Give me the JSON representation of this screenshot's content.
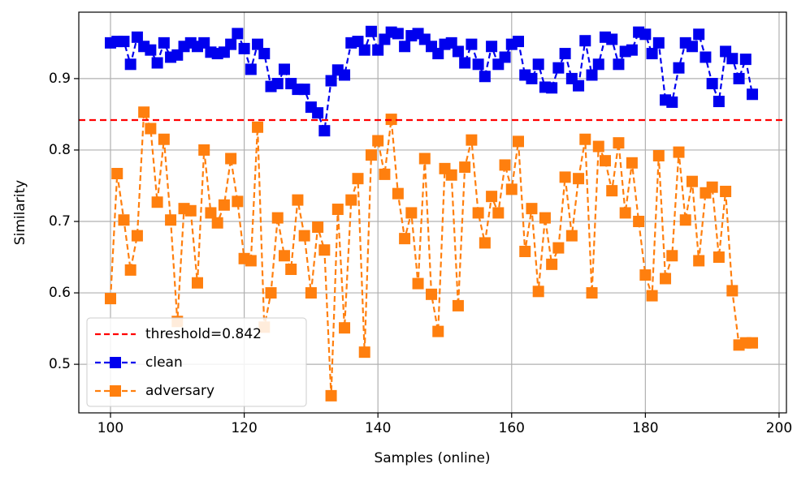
{
  "chart_data": {
    "type": "line",
    "xlabel": "Samples (online)",
    "ylabel": "Similarity",
    "x": [
      100,
      101,
      102,
      103,
      104,
      105,
      106,
      107,
      108,
      109,
      110,
      111,
      112,
      113,
      114,
      115,
      116,
      117,
      118,
      119,
      120,
      121,
      122,
      123,
      124,
      125,
      126,
      127,
      128,
      129,
      130,
      131,
      132,
      133,
      134,
      135,
      136,
      137,
      138,
      139,
      140,
      141,
      142,
      143,
      144,
      145,
      146,
      147,
      148,
      149,
      150,
      151,
      152,
      153,
      154,
      155,
      156,
      157,
      158,
      159,
      160,
      161,
      162,
      163,
      164,
      165,
      166,
      167,
      168,
      169,
      170,
      171,
      172,
      173,
      174,
      175,
      176,
      177,
      178,
      179,
      180,
      181,
      182,
      183,
      184,
      185,
      186,
      187,
      188,
      189,
      190,
      191,
      192,
      193,
      194,
      195,
      196
    ],
    "threshold": {
      "name": "threshold=0.842",
      "value": 0.842,
      "color": "#ff0000"
    },
    "series": [
      {
        "name": "clean",
        "color": "#0000ee",
        "values": [
          0.95,
          0.952,
          0.952,
          0.92,
          0.958,
          0.945,
          0.94,
          0.922,
          0.95,
          0.93,
          0.933,
          0.945,
          0.95,
          0.945,
          0.95,
          0.937,
          0.935,
          0.937,
          0.948,
          0.963,
          0.942,
          0.913,
          0.948,
          0.935,
          0.889,
          0.893,
          0.913,
          0.893,
          0.885,
          0.885,
          0.86,
          0.852,
          0.827,
          0.897,
          0.912,
          0.905,
          0.95,
          0.952,
          0.94,
          0.966,
          0.94,
          0.955,
          0.965,
          0.963,
          0.945,
          0.96,
          0.963,
          0.955,
          0.945,
          0.935,
          0.948,
          0.95,
          0.938,
          0.922,
          0.948,
          0.92,
          0.903,
          0.945,
          0.92,
          0.93,
          0.948,
          0.952,
          0.905,
          0.9,
          0.92,
          0.888,
          0.887,
          0.915,
          0.935,
          0.9,
          0.89,
          0.953,
          0.905,
          0.92,
          0.958,
          0.955,
          0.92,
          0.938,
          0.94,
          0.965,
          0.962,
          0.935,
          0.95,
          0.87,
          0.867,
          0.915,
          0.95,
          0.945,
          0.962,
          0.93,
          0.893,
          0.868,
          0.938,
          0.928,
          0.9,
          0.927,
          0.878
        ]
      },
      {
        "name": "adversary",
        "color": "#ff7f0e",
        "values": [
          0.592,
          0.767,
          0.702,
          0.632,
          0.68,
          0.853,
          0.83,
          0.727,
          0.815,
          0.702,
          0.56,
          0.718,
          0.715,
          0.614,
          0.8,
          0.712,
          0.698,
          0.723,
          0.788,
          0.728,
          0.648,
          0.645,
          0.832,
          0.552,
          0.6,
          0.705,
          0.652,
          0.633,
          0.73,
          0.68,
          0.6,
          0.692,
          0.66,
          0.456,
          0.717,
          0.551,
          0.73,
          0.76,
          0.517,
          0.793,
          0.813,
          0.766,
          0.843,
          0.739,
          0.676,
          0.712,
          0.613,
          0.788,
          0.598,
          0.546,
          0.774,
          0.765,
          0.582,
          0.776,
          0.814,
          0.712,
          0.67,
          0.735,
          0.712,
          0.779,
          0.745,
          0.812,
          0.658,
          0.718,
          0.602,
          0.705,
          0.64,
          0.663,
          0.762,
          0.68,
          0.76,
          0.815,
          0.6,
          0.805,
          0.785,
          0.743,
          0.81,
          0.712,
          0.782,
          0.7,
          0.625,
          0.596,
          0.792,
          0.62,
          0.652,
          0.797,
          0.702,
          0.756,
          0.645,
          0.74,
          0.748,
          0.65,
          0.742,
          0.603,
          0.527,
          0.53,
          0.53
        ]
      }
    ],
    "xlim": [
      95.26,
      201.1
    ],
    "ylim": [
      0.432,
      0.993
    ],
    "xticks": [
      100,
      120,
      140,
      160,
      180,
      200
    ],
    "yticks": [
      0.5,
      0.6,
      0.7,
      0.8,
      0.9
    ],
    "grid": true,
    "legend": "lower left"
  }
}
